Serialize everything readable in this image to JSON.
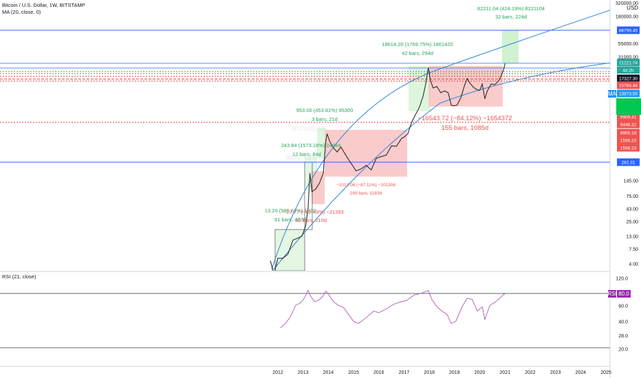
{
  "header": {
    "symbol_line": "Bitcoin / U.S. Dollar, 1W, BITSTAMP",
    "ma_line": "MA (20, close, 0)",
    "rsi_line": "RSI (21, close)"
  },
  "watermark": {
    "ticker": "BTCUSD, 1W",
    "name": "Bitcoin / U.S. Dollar"
  },
  "currency": "USD",
  "colors": {
    "candles": "#2b2b2b",
    "fib_blue": "#2962ff",
    "arc_blue": "#2a86d9",
    "green_dotted": "#43a047",
    "red_dotted": "#e53935",
    "gain_box": "#c8f0c8",
    "loss_box": "#f9c2c2",
    "gain_text": "#26a65b",
    "loss_text": "#ef5350",
    "rsi_line": "#b05ab0",
    "rsi_badge": "#9c27b0"
  },
  "chart_data": [
    {
      "type": "line",
      "pane": "price",
      "scale": "log",
      "series": [
        {
          "x": [
            2011.7,
            2011.85,
            2012.0,
            2012.2,
            2012.4,
            2012.6,
            2012.8,
            2012.95,
            2013.1,
            2013.2,
            2013.27,
            2013.35,
            2013.5,
            2013.65,
            2013.8,
            2013.9,
            2013.95,
            2014.05,
            2014.2,
            2014.35,
            2014.5,
            2014.65,
            2014.8,
            2015.0,
            2015.1,
            2015.3,
            2015.5,
            2015.7,
            2015.9,
            2016.1,
            2016.3,
            2016.5,
            2016.7,
            2016.9,
            2017.0,
            2017.15,
            2017.3,
            2017.45,
            2017.6,
            2017.75,
            2017.85,
            2017.96,
            2018.05,
            2018.15,
            2018.3,
            2018.45,
            2018.6,
            2018.75,
            2018.87,
            2018.96,
            2019.1,
            2019.25,
            2019.4,
            2019.5,
            2019.6,
            2019.75,
            2019.9,
            2020.0,
            2020.1,
            2020.2,
            2020.3,
            2020.45,
            2020.6,
            2020.75,
            2020.85,
            2020.95,
            2021.0
          ],
          "y": [
            4.5,
            2.5,
            5,
            5,
            6,
            11,
            12,
            13,
            20,
            45,
            200,
            90,
            100,
            130,
            200,
            800,
            1100,
            800,
            600,
            500,
            620,
            470,
            360,
            260,
            220,
            240,
            280,
            230,
            380,
            410,
            440,
            650,
            640,
            900,
            950,
            1100,
            1800,
            2500,
            3400,
            5500,
            9000,
            19000,
            11000,
            8000,
            8500,
            6500,
            7000,
            6500,
            3800,
            3700,
            3800,
            5200,
            9000,
            12000,
            10000,
            8200,
            7400,
            7200,
            9500,
            5000,
            7000,
            9500,
            9200,
            11000,
            13500,
            18000,
            23000
          ]
        }
      ],
      "ylim": [
        3.0,
        320000
      ],
      "xlim": [
        2011.4,
        2025.4
      ],
      "x_ticks": [
        "2012",
        "2013",
        "2014",
        "2015",
        "2016",
        "2017",
        "2018",
        "2019",
        "2020",
        "2021",
        "2022",
        "2023",
        "2024",
        "2025"
      ],
      "y_ticks": [
        "320000.00",
        "180000.00",
        "55000.00",
        "31000.00",
        "145.00",
        "75.00",
        "43.00",
        "25.00",
        "13.00",
        "7.50",
        "4.00"
      ],
      "price_labels": [
        "88799.45",
        "21221.74",
        "17327.30",
        "15764.44",
        "13873.50",
        "9909.41",
        "9448.32",
        "8955.18",
        "1558.23",
        "1558.23",
        "282.31"
      ],
      "badges": {
        "countdown": "4d 2h",
        "ma": "MA"
      },
      "annotations": [
        "82211.04 (424.19%) 8221104",
        "32 bars, 224d",
        "18614.20 (1769.75%) 1861420",
        "42 bars, 294d",
        "953.00 (453.81%) 95300",
        "3 bars, 21d",
        "243.84 (1573.16%) 24384",
        "12 bars, 84d",
        "13.20 (586.67%) 1320",
        "61 bars, 427d",
        "−27.77 (−82.49%) −21393",
        "30 bars, 210d",
        "−1013.06 (−87.11%) −101306",
        "169 bars, 1183d",
        "−16543.72 (−84.12%) −1654372",
        "155 bars, 1085d"
      ]
    },
    {
      "type": "line",
      "pane": "rsi",
      "series": [
        {
          "x": [
            2012.1,
            2012.3,
            2012.5,
            2012.7,
            2012.9,
            2013.05,
            2013.2,
            2013.3,
            2013.45,
            2013.6,
            2013.75,
            2013.9,
            2014.0,
            2014.2,
            2014.4,
            2014.6,
            2014.8,
            2015.0,
            2015.2,
            2015.5,
            2015.8,
            2016.0,
            2016.3,
            2016.6,
            2016.9,
            2017.1,
            2017.4,
            2017.7,
            2017.9,
            2017.96,
            2018.1,
            2018.3,
            2018.5,
            2018.7,
            2018.87,
            2019.05,
            2019.3,
            2019.5,
            2019.7,
            2019.9,
            2020.1,
            2020.2,
            2020.4,
            2020.6,
            2020.8,
            2020.95,
            2021.0
          ],
          "y": [
            34,
            38,
            45,
            60,
            64,
            72,
            88,
            76,
            66,
            68,
            74,
            86,
            80,
            66,
            60,
            57,
            48,
            40,
            38,
            44,
            52,
            50,
            55,
            62,
            66,
            68,
            78,
            82,
            86,
            88,
            70,
            58,
            52,
            48,
            38,
            40,
            58,
            72,
            70,
            52,
            58,
            42,
            60,
            65,
            72,
            80,
            80
          ]
        }
      ],
      "ylim": [
        15,
        130
      ],
      "y_ticks": [
        "120.0",
        "60.0",
        "40.0",
        "28.0",
        "20.0"
      ],
      "badge": {
        "name": "RSI",
        "value": "80.0"
      }
    }
  ]
}
